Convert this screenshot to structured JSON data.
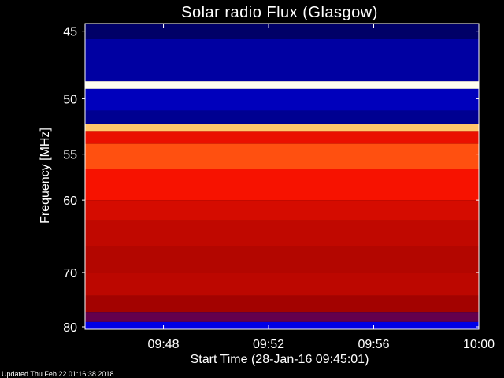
{
  "chart_data": {
    "type": "heatmap",
    "title": "Solar radio Flux (Glasgow)",
    "xlabel": "Start Time (28-Jan-16 09:45:01)",
    "ylabel": "Frequency [MHz]",
    "x_start": "09:45:01",
    "x_end": "10:00:00",
    "y_range": [
      44.5,
      80.5
    ],
    "y_ticks": [
      "45",
      "50",
      "55",
      "60",
      "70",
      "80"
    ],
    "x_ticks": [
      "09:48",
      "09:52",
      "09:56",
      "10:00"
    ],
    "y_scale": "reciprocal",
    "colormap": "blue-black to red to yellow-white",
    "bands": [
      {
        "f": [
          44.5,
          45.5
        ],
        "level": 0.05
      },
      {
        "f": [
          45.5,
          48.6
        ],
        "level": 0.12
      },
      {
        "f": [
          48.6,
          49.2
        ],
        "level": 1.0
      },
      {
        "f": [
          49.2,
          51.0
        ],
        "level": 0.15
      },
      {
        "f": [
          51.0,
          52.2
        ],
        "level": 0.1
      },
      {
        "f": [
          52.2,
          52.8
        ],
        "level": 0.9
      },
      {
        "f": [
          52.8,
          54.0
        ],
        "level": 0.55
      },
      {
        "f": [
          54.0,
          56.5
        ],
        "level": 0.7
      },
      {
        "f": [
          56.5,
          60.0
        ],
        "level": 0.58
      },
      {
        "f": [
          60.0,
          62.5
        ],
        "level": 0.5
      },
      {
        "f": [
          62.5,
          66.0
        ],
        "level": 0.45
      },
      {
        "f": [
          66.0,
          70.0
        ],
        "level": 0.42
      },
      {
        "f": [
          70.0,
          74.0
        ],
        "level": 0.44
      },
      {
        "f": [
          74.0,
          77.0
        ],
        "level": 0.38
      },
      {
        "f": [
          77.0,
          79.0
        ],
        "level": 0.3
      },
      {
        "f": [
          79.0,
          80.5
        ],
        "level": 0.2
      }
    ]
  },
  "footer": "Updated Thu Feb 22 01:16:38 2018",
  "colors": {
    "background": "#000000",
    "text": "#ffffff"
  }
}
